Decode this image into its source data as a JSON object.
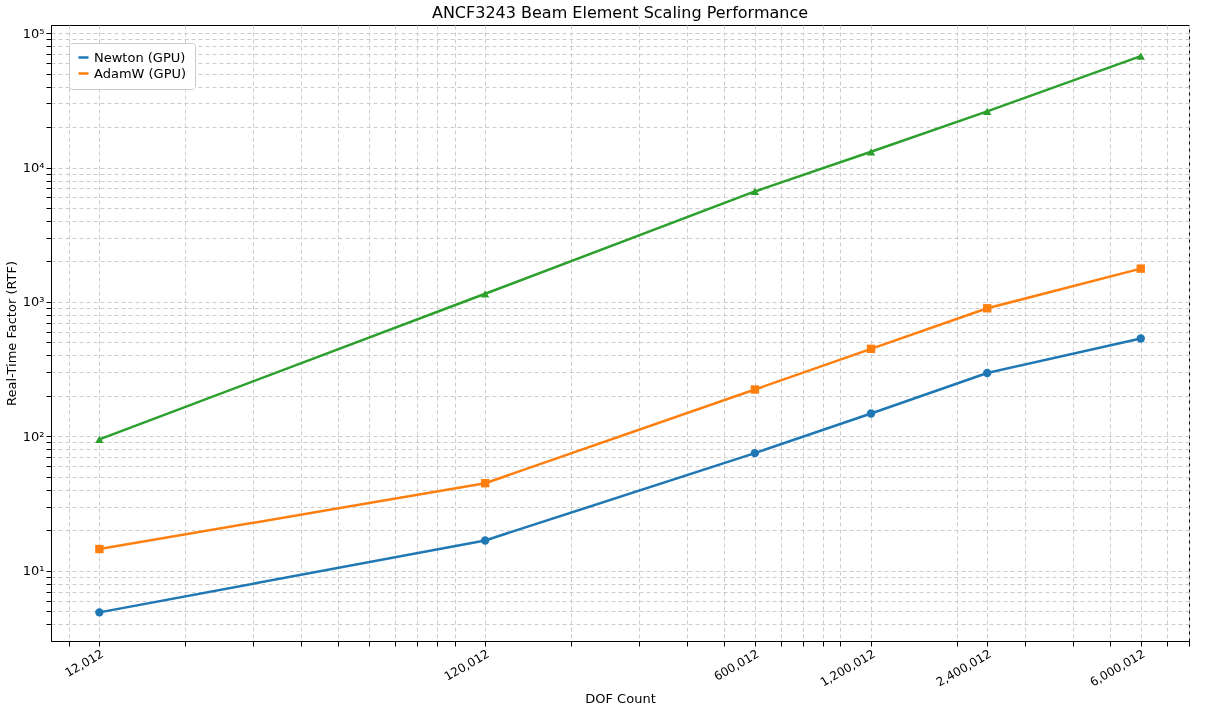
{
  "chart_data": {
    "type": "line",
    "title": "ANCF3243 Beam Element Scaling Performance",
    "xlabel": "DOF Count",
    "ylabel": "Real-Time Factor (RTF)",
    "x": [
      12012,
      120012,
      600012,
      1200012,
      2400012,
      6000012
    ],
    "series": [
      {
        "name": "Newton (GPU)",
        "color": "#1f77b4",
        "marker": "circle",
        "values": [
          4.9,
          16.8,
          75,
          148,
          296,
          535
        ]
      },
      {
        "name": "AdamW (GPU)",
        "color": "#ff7f0e",
        "marker": "square",
        "values": [
          14.5,
          44.8,
          223,
          448,
          897,
          1770
        ]
      },
      {
        "color": "#2ca02c",
        "marker": "triangle",
        "values": [
          95,
          1150,
          6640,
          13100,
          26200,
          67400
        ]
      }
    ],
    "log": "xy",
    "grid": true,
    "legend": "top left",
    "line_style": "solid",
    "xlim": [
      9000,
      8000000
    ],
    "ylim": [
      3,
      115000
    ],
    "xticks": [
      {
        "value": 12012,
        "label": "12,012"
      },
      {
        "value": 120012,
        "label": "120,012"
      },
      {
        "value": 600012,
        "label": "600,012"
      },
      {
        "value": 1200012,
        "label": "1,200,012"
      },
      {
        "value": 2400012,
        "label": "2,400,012"
      },
      {
        "value": 6000012,
        "label": "6,000,012"
      },
      {
        "value": 10000,
        "label": null
      },
      {
        "value": 20000,
        "label": null
      },
      {
        "value": 30000,
        "label": null
      },
      {
        "value": 40000,
        "label": null
      },
      {
        "value": 50000,
        "label": null
      },
      {
        "value": 60000,
        "label": null
      },
      {
        "value": 70000,
        "label": null
      },
      {
        "value": 80000,
        "label": null
      },
      {
        "value": 90000,
        "label": null
      },
      {
        "value": 100000,
        "label": null
      },
      {
        "value": 200000,
        "label": null
      },
      {
        "value": 300000,
        "label": null
      },
      {
        "value": 400000,
        "label": null
      },
      {
        "value": 500000,
        "label": null
      },
      {
        "value": 700000,
        "label": null
      },
      {
        "value": 800000,
        "label": null
      },
      {
        "value": 900000,
        "label": null
      },
      {
        "value": 1000000,
        "label": null
      },
      {
        "value": 2000000,
        "label": null
      },
      {
        "value": 3000000,
        "label": null
      },
      {
        "value": 4000000,
        "label": null
      },
      {
        "value": 5000000,
        "label": null
      },
      {
        "value": 7000000,
        "label": null
      },
      {
        "value": 8000000,
        "label": null
      }
    ],
    "yticks": [
      {
        "value": 10,
        "label": "10¹"
      },
      {
        "value": 100,
        "label": "10²"
      },
      {
        "value": 1000,
        "label": "10³"
      },
      {
        "value": 10000,
        "label": "10⁴"
      },
      {
        "value": 100000,
        "label": "10⁵"
      },
      {
        "value": 4,
        "label": null
      },
      {
        "value": 5,
        "label": null
      },
      {
        "value": 6,
        "label": null
      },
      {
        "value": 7,
        "label": null
      },
      {
        "value": 8,
        "label": null
      },
      {
        "value": 9,
        "label": null
      },
      {
        "value": 20,
        "label": null
      },
      {
        "value": 30,
        "label": null
      },
      {
        "value": 40,
        "label": null
      },
      {
        "value": 50,
        "label": null
      },
      {
        "value": 60,
        "label": null
      },
      {
        "value": 70,
        "label": null
      },
      {
        "value": 80,
        "label": null
      },
      {
        "value": 90,
        "label": null
      },
      {
        "value": 200,
        "label": null
      },
      {
        "value": 300,
        "label": null
      },
      {
        "value": 400,
        "label": null
      },
      {
        "value": 500,
        "label": null
      },
      {
        "value": 600,
        "label": null
      },
      {
        "value": 700,
        "label": null
      },
      {
        "value": 800,
        "label": null
      },
      {
        "value": 900,
        "label": null
      },
      {
        "value": 2000,
        "label": null
      },
      {
        "value": 3000,
        "label": null
      },
      {
        "value": 4000,
        "label": null
      },
      {
        "value": 5000,
        "label": null
      },
      {
        "value": 6000,
        "label": null
      },
      {
        "value": 7000,
        "label": null
      },
      {
        "value": 8000,
        "label": null
      },
      {
        "value": 9000,
        "label": null
      },
      {
        "value": 20000,
        "label": null
      },
      {
        "value": 30000,
        "label": null
      },
      {
        "value": 40000,
        "label": null
      },
      {
        "value": 50000,
        "label": null
      },
      {
        "value": 60000,
        "label": null
      },
      {
        "value": 70000,
        "label": null
      },
      {
        "value": 80000,
        "label": null
      },
      {
        "value": 90000,
        "label": null
      }
    ]
  }
}
